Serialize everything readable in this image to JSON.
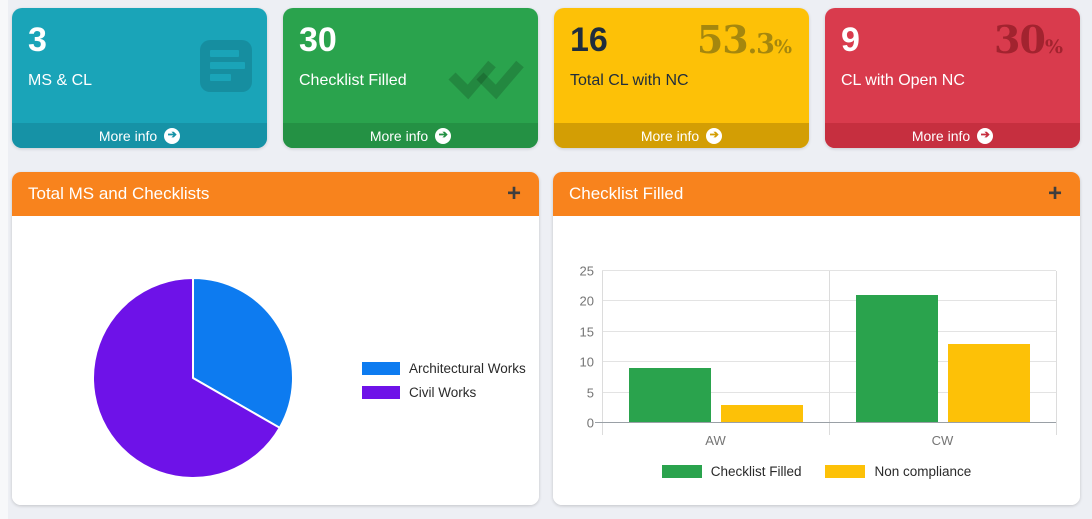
{
  "page": {
    "background": "#edeff4",
    "left_strip": "#f7f8fa",
    "panel_header_color": "#f8831d"
  },
  "icons": {
    "arrow_circle_right": "➔"
  },
  "info_boxes": [
    {
      "value": "3",
      "label": "MS & CL",
      "more_info": "More info",
      "icon": "list-lines-icon",
      "colors": {
        "body": "#1aa4b8",
        "footer": "#1692a6",
        "text": "#ffffff"
      }
    },
    {
      "value": "30",
      "label": "Checklist Filled",
      "more_info": "More info",
      "icon": "check-double-icon",
      "colors": {
        "body": "#2aa34d",
        "footer": "#249144",
        "text": "#ffffff"
      }
    },
    {
      "value": "16",
      "label": "Total CL with NC",
      "more_info": "More info",
      "percent": {
        "display": "53.3%",
        "big": "53",
        "small": ".3",
        "symbol": "%"
      },
      "colors": {
        "body": "#fdc107",
        "footer": "#d39e04",
        "text": "#1f2d3d",
        "percent": "#a5870e",
        "footer_text": "#ffffff"
      }
    },
    {
      "value": "9",
      "label": "CL with Open NC",
      "more_info": "More info",
      "percent": {
        "display": "30%",
        "big": "30",
        "symbol": "%"
      },
      "colors": {
        "body": "#d93b4d",
        "footer": "#c62f3f",
        "text": "#ffffff",
        "percent": "#a2232f"
      }
    }
  ],
  "panels": [
    {
      "title": "Total MS and Checklists",
      "collapse_label": "+"
    },
    {
      "title": "Checklist Filled",
      "collapse_label": "+"
    }
  ],
  "chart_data": [
    {
      "type": "pie",
      "title": "Total MS and Checklists",
      "labels": [
        "Architectural Works",
        "Civil Works"
      ],
      "values_pct": [
        33.3,
        66.7
      ],
      "colors": [
        "#0d7bf0",
        "#6e12e8"
      ],
      "slice_border_color": "#ffffff",
      "start_angle_deg": 0,
      "legend_position": "right"
    },
    {
      "type": "bar",
      "title": "Checklist Filled",
      "categories": [
        "AW",
        "CW"
      ],
      "series": [
        {
          "name": "Checklist Filled",
          "values": [
            9,
            21
          ],
          "color": "#2aa34d"
        },
        {
          "name": "Non compliance",
          "values": [
            3,
            13
          ],
          "color": "#fdc107"
        }
      ],
      "ylim": [
        0,
        25
      ],
      "yticks": [
        0,
        5,
        10,
        15,
        20,
        25
      ],
      "grid": true,
      "axis_color": "#9aa0a6",
      "grid_color": "#e3e3e3",
      "tick_label_color": "#757575",
      "legend_position": "bottom"
    }
  ]
}
